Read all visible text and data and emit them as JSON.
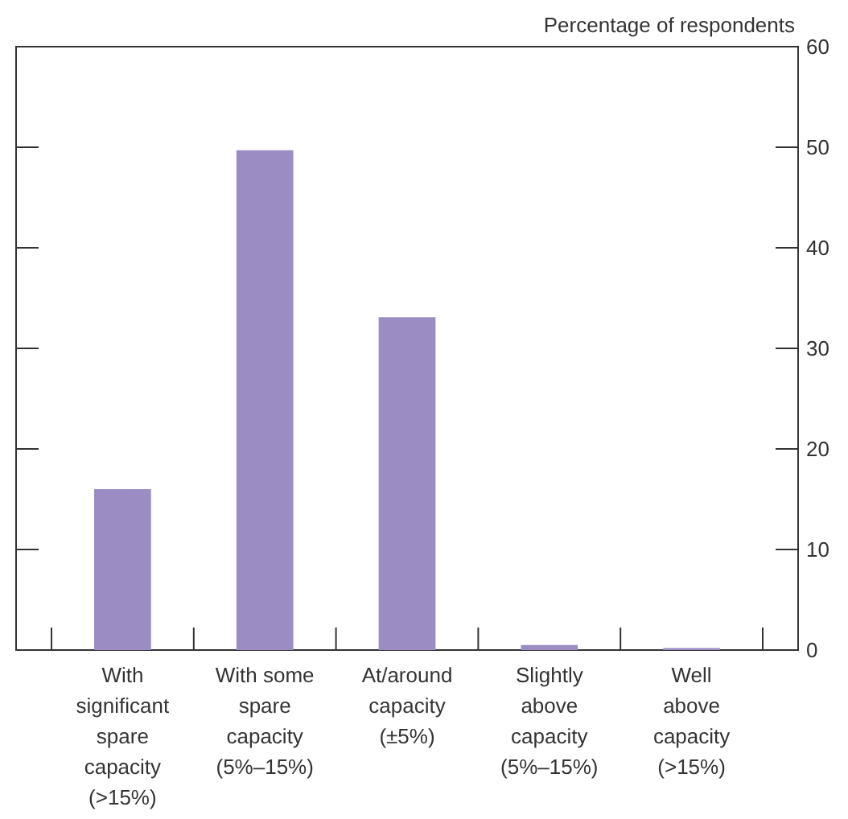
{
  "chart_data": {
    "type": "bar",
    "ylabel": "Percentage of respondents",
    "categories": [
      "With significant spare capacity (>15%)",
      "With some spare capacity (5%–15%)",
      "At/around capacity (±5%)",
      "Slightly above capacity (5%–15%)",
      "Well above capacity (>15%)"
    ],
    "values": [
      16,
      49.7,
      33.1,
      0.5,
      0.2
    ],
    "color": "#9b8dc3",
    "ylim": [
      0,
      60
    ],
    "yticks": [
      0,
      10,
      20,
      30,
      40,
      50,
      60
    ],
    "grid": false
  }
}
